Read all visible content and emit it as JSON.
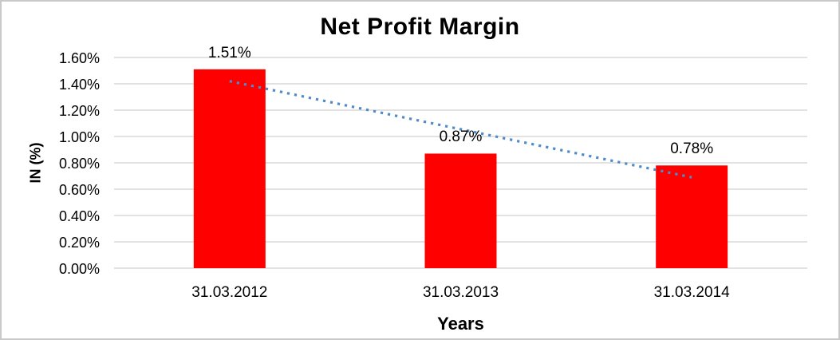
{
  "chart_data": {
    "type": "bar",
    "title": "Net Profit Margin",
    "xlabel": "Years",
    "ylabel": "IN (%)",
    "categories": [
      "31.03.2012",
      "31.03.2013",
      "31.03.2014"
    ],
    "values": [
      1.51,
      0.87,
      0.78
    ],
    "data_labels": [
      "1.51%",
      "0.87%",
      "0.78%"
    ],
    "ylim": [
      0,
      1.6
    ],
    "ytick_labels": [
      "0.00%",
      "0.20%",
      "0.40%",
      "0.60%",
      "0.80%",
      "1.00%",
      "1.20%",
      "1.40%",
      "1.60%"
    ],
    "grid": true,
    "legend": "none",
    "bar_color": "#ff0000",
    "gridline_color": "#d9d9d9",
    "text_color": "#000000",
    "frame_border_color": "#c9c9c9",
    "trendline": {
      "type": "linear",
      "style": "dotted",
      "color": "#4f8bc9",
      "start_value": 1.42,
      "end_value": 0.69
    }
  }
}
